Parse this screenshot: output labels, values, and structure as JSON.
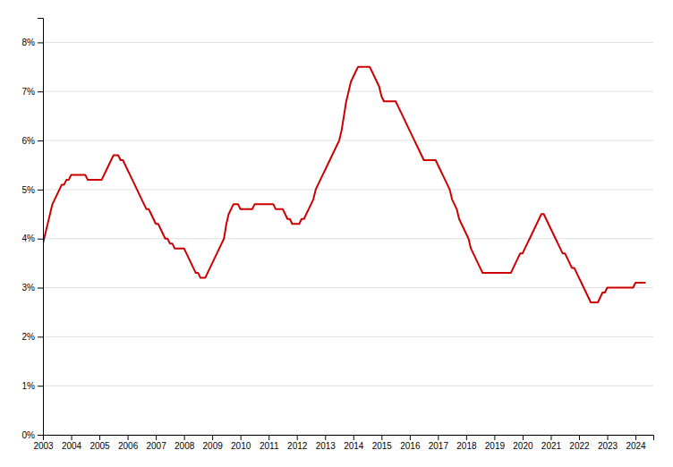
{
  "chart_data": {
    "type": "line",
    "color": "#CC0000",
    "grid": true,
    "xlim": [
      2003.0,
      2024.6333333333334
    ],
    "xticks": [
      2003,
      2004,
      2005,
      2006,
      2007,
      2008,
      2009,
      2010,
      2011,
      2012,
      2013,
      2014,
      2015,
      2016,
      2017,
      2018,
      2019,
      2020,
      2021,
      2022,
      2023,
      2024
    ],
    "ylim": [
      0,
      0.085
    ],
    "yticks": [
      {
        "value": 0,
        "label": "0%"
      },
      {
        "value": 0.01,
        "label": "1%"
      },
      {
        "value": 0.02,
        "label": "2%"
      },
      {
        "value": 0.03,
        "label": "3%"
      },
      {
        "value": 0.04,
        "label": "4%"
      },
      {
        "value": 0.05,
        "label": "5%"
      },
      {
        "value": 0.06,
        "label": "6%"
      },
      {
        "value": 0.07,
        "label": "7%"
      },
      {
        "value": 0.08,
        "label": "8%"
      }
    ],
    "x": [
      2003,
      2003.083333333333,
      2003.166666666667,
      2003.25,
      2003.333333333333,
      2003.416666666667,
      2003.5,
      2003.583333333333,
      2003.666666666667,
      2003.75,
      2003.833333333333,
      2003.916666666667,
      2004,
      2004.083333333333,
      2004.166666666667,
      2004.25,
      2004.333333333333,
      2004.416666666667,
      2004.5,
      2004.583333333333,
      2004.666666666667,
      2004.75,
      2004.833333333333,
      2004.916666666667,
      2005,
      2005.083333333333,
      2005.166666666667,
      2005.25,
      2005.333333333333,
      2005.416666666667,
      2005.5,
      2005.583333333333,
      2005.666666666667,
      2005.75,
      2005.833333333333,
      2005.916666666667,
      2006,
      2006.083333333333,
      2006.166666666667,
      2006.25,
      2006.333333333333,
      2006.416666666667,
      2006.5,
      2006.583333333333,
      2006.666666666667,
      2006.75,
      2006.833333333333,
      2006.916666666667,
      2007,
      2007.083333333333,
      2007.166666666667,
      2007.25,
      2007.333333333333,
      2007.416666666667,
      2007.5,
      2007.583333333333,
      2007.666666666667,
      2007.75,
      2007.833333333333,
      2007.916666666667,
      2008,
      2008.083333333333,
      2008.166666666667,
      2008.25,
      2008.333333333333,
      2008.416666666667,
      2008.5,
      2008.583333333333,
      2008.666666666667,
      2008.75,
      2008.833333333333,
      2008.916666666667,
      2009,
      2009.083333333333,
      2009.166666666667,
      2009.25,
      2009.333333333333,
      2009.416666666667,
      2009.5,
      2009.583333333333,
      2009.666666666667,
      2009.75,
      2009.833333333333,
      2009.916666666667,
      2010,
      2010.083333333333,
      2010.166666666667,
      2010.25,
      2010.333333333333,
      2010.416666666667,
      2010.5,
      2010.583333333333,
      2010.666666666667,
      2010.75,
      2010.833333333333,
      2010.916666666667,
      2011,
      2011.083333333333,
      2011.166666666667,
      2011.25,
      2011.333333333333,
      2011.416666666667,
      2011.5,
      2011.583333333333,
      2011.666666666667,
      2011.75,
      2011.833333333333,
      2011.916666666667,
      2012,
      2012.083333333333,
      2012.166666666667,
      2012.25,
      2012.333333333333,
      2012.416666666667,
      2012.5,
      2012.583333333333,
      2012.666666666667,
      2012.75,
      2012.833333333333,
      2012.916666666667,
      2013,
      2013.083333333333,
      2013.166666666667,
      2013.25,
      2013.333333333333,
      2013.416666666667,
      2013.5,
      2013.583333333333,
      2013.666666666667,
      2013.75,
      2013.833333333333,
      2013.916666666667,
      2014,
      2014.083333333333,
      2014.166666666667,
      2014.25,
      2014.333333333333,
      2014.416666666667,
      2014.5,
      2014.583333333333,
      2014.666666666667,
      2014.75,
      2014.833333333333,
      2014.916666666667,
      2015,
      2015.083333333333,
      2015.166666666667,
      2015.25,
      2015.333333333333,
      2015.416666666667,
      2015.5,
      2015.583333333333,
      2015.666666666667,
      2015.75,
      2015.833333333333,
      2015.916666666667,
      2016,
      2016.083333333333,
      2016.166666666667,
      2016.25,
      2016.333333333333,
      2016.416666666667,
      2016.5,
      2016.583333333333,
      2016.666666666667,
      2016.75,
      2016.833333333333,
      2016.916666666667,
      2017,
      2017.083333333333,
      2017.166666666667,
      2017.25,
      2017.333333333333,
      2017.416666666667,
      2017.5,
      2017.583333333333,
      2017.666666666667,
      2017.75,
      2017.833333333333,
      2017.916666666667,
      2018,
      2018.083333333333,
      2018.166666666667,
      2018.25,
      2018.333333333333,
      2018.416666666667,
      2018.5,
      2018.583333333333,
      2018.666666666667,
      2018.75,
      2018.833333333333,
      2018.916666666667,
      2019,
      2019.083333333333,
      2019.166666666667,
      2019.25,
      2019.333333333333,
      2019.416666666667,
      2019.5,
      2019.583333333333,
      2019.666666666667,
      2019.75,
      2019.833333333333,
      2019.916666666667,
      2020,
      2020.083333333333,
      2020.166666666667,
      2020.25,
      2020.333333333333,
      2020.416666666667,
      2020.5,
      2020.583333333333,
      2020.666666666667,
      2020.75,
      2020.833333333333,
      2020.916666666667,
      2021,
      2021.083333333333,
      2021.166666666667,
      2021.25,
      2021.333333333333,
      2021.416666666667,
      2021.5,
      2021.583333333333,
      2021.666666666667,
      2021.75,
      2021.833333333333,
      2021.916666666667,
      2022,
      2022.083333333333,
      2022.166666666667,
      2022.25,
      2022.333333333333,
      2022.416666666667,
      2022.5,
      2022.583333333333,
      2022.666666666667,
      2022.75,
      2022.833333333333,
      2022.916666666667,
      2023,
      2023.083333333333,
      2023.166666666667,
      2023.25,
      2023.333333333333,
      2023.416666666667,
      2023.5,
      2023.583333333333,
      2023.666666666667,
      2023.75,
      2023.833333333333,
      2023.916666666667,
      2024,
      2024.083333333333,
      2024.166666666667,
      2024.25,
      2024.333333333333
    ],
    "values": [
      0.039,
      0.041,
      0.043,
      0.045,
      0.047,
      0.048,
      0.049,
      0.05,
      0.051,
      0.051,
      0.052,
      0.052,
      0.053,
      0.053,
      0.053,
      0.053,
      0.053,
      0.053,
      0.053,
      0.052,
      0.052,
      0.052,
      0.052,
      0.052,
      0.052,
      0.052,
      0.053,
      0.054,
      0.055,
      0.056,
      0.057,
      0.057,
      0.057,
      0.056,
      0.056,
      0.055,
      0.054,
      0.053,
      0.052,
      0.051,
      0.05,
      0.049,
      0.048,
      0.047,
      0.046,
      0.046,
      0.045,
      0.044,
      0.043,
      0.043,
      0.042,
      0.041,
      0.04,
      0.04,
      0.039,
      0.039,
      0.038,
      0.038,
      0.038,
      0.038,
      0.038,
      0.037,
      0.036,
      0.035,
      0.034,
      0.033,
      0.033,
      0.032,
      0.032,
      0.032,
      0.033,
      0.034,
      0.035,
      0.036,
      0.037,
      0.038,
      0.039,
      0.04,
      0.043,
      0.045,
      0.046,
      0.047,
      0.047,
      0.047,
      0.046,
      0.046,
      0.046,
      0.046,
      0.046,
      0.046,
      0.047,
      0.047,
      0.047,
      0.047,
      0.047,
      0.047,
      0.047,
      0.047,
      0.047,
      0.046,
      0.046,
      0.046,
      0.046,
      0.045,
      0.044,
      0.044,
      0.043,
      0.043,
      0.043,
      0.043,
      0.044,
      0.044,
      0.045,
      0.046,
      0.047,
      0.048,
      0.05,
      0.051,
      0.052,
      0.053,
      0.054,
      0.055,
      0.056,
      0.057,
      0.058,
      0.059,
      0.06,
      0.062,
      0.065,
      0.068,
      0.07,
      0.072,
      0.073,
      0.074,
      0.075,
      0.075,
      0.075,
      0.075,
      0.075,
      0.075,
      0.074,
      0.073,
      0.072,
      0.071,
      0.069,
      0.068,
      0.068,
      0.068,
      0.068,
      0.068,
      0.068,
      0.067,
      0.066,
      0.065,
      0.064,
      0.063,
      0.062,
      0.061,
      0.06,
      0.059,
      0.058,
      0.057,
      0.056,
      0.056,
      0.056,
      0.056,
      0.056,
      0.056,
      0.055,
      0.054,
      0.053,
      0.052,
      0.051,
      0.05,
      0.048,
      0.047,
      0.046,
      0.044,
      0.043,
      0.042,
      0.041,
      0.04,
      0.038,
      0.037,
      0.036,
      0.035,
      0.034,
      0.033,
      0.033,
      0.033,
      0.033,
      0.033,
      0.033,
      0.033,
      0.033,
      0.033,
      0.033,
      0.033,
      0.033,
      0.033,
      0.034,
      0.035,
      0.036,
      0.037,
      0.037,
      0.038,
      0.039,
      0.04,
      0.041,
      0.042,
      0.043,
      0.044,
      0.045,
      0.045,
      0.044,
      0.043,
      0.042,
      0.041,
      0.04,
      0.039,
      0.038,
      0.037,
      0.037,
      0.036,
      0.035,
      0.034,
      0.034,
      0.033,
      0.032,
      0.031,
      0.03,
      0.029,
      0.028,
      0.027,
      0.027,
      0.027,
      0.027,
      0.028,
      0.029,
      0.029,
      0.03,
      0.03,
      0.03,
      0.03,
      0.03,
      0.03,
      0.03,
      0.03,
      0.03,
      0.03,
      0.03,
      0.03,
      0.031,
      0.031,
      0.031,
      0.031,
      0.031
    ]
  }
}
